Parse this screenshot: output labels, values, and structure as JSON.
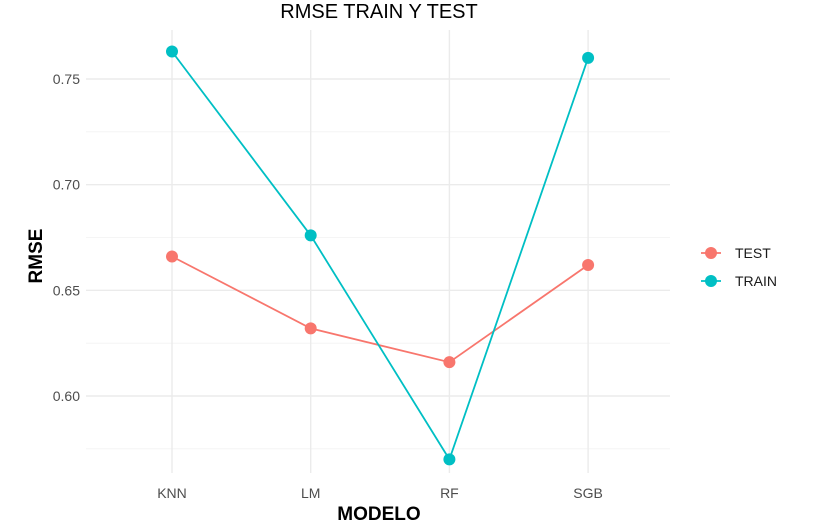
{
  "chart_data": {
    "type": "line",
    "title": "RMSE TRAIN Y TEST",
    "xlabel": "MODELO",
    "ylabel": "RMSE",
    "categories": [
      "KNN",
      "LM",
      "RF",
      "SGB"
    ],
    "ylim": [
      0.562,
      0.771
    ],
    "yticks": [
      0.6,
      0.65,
      0.7,
      0.75
    ],
    "ytick_labels": [
      "0.60",
      "0.65",
      "0.70",
      "0.75"
    ],
    "grid": true,
    "legend_position": "right",
    "series": [
      {
        "name": "TEST",
        "color": "#F8766D",
        "values": [
          0.666,
          0.632,
          0.616,
          0.662
        ]
      },
      {
        "name": "TRAIN",
        "color": "#00BFC4",
        "values": [
          0.763,
          0.676,
          0.57,
          0.76
        ]
      }
    ]
  }
}
